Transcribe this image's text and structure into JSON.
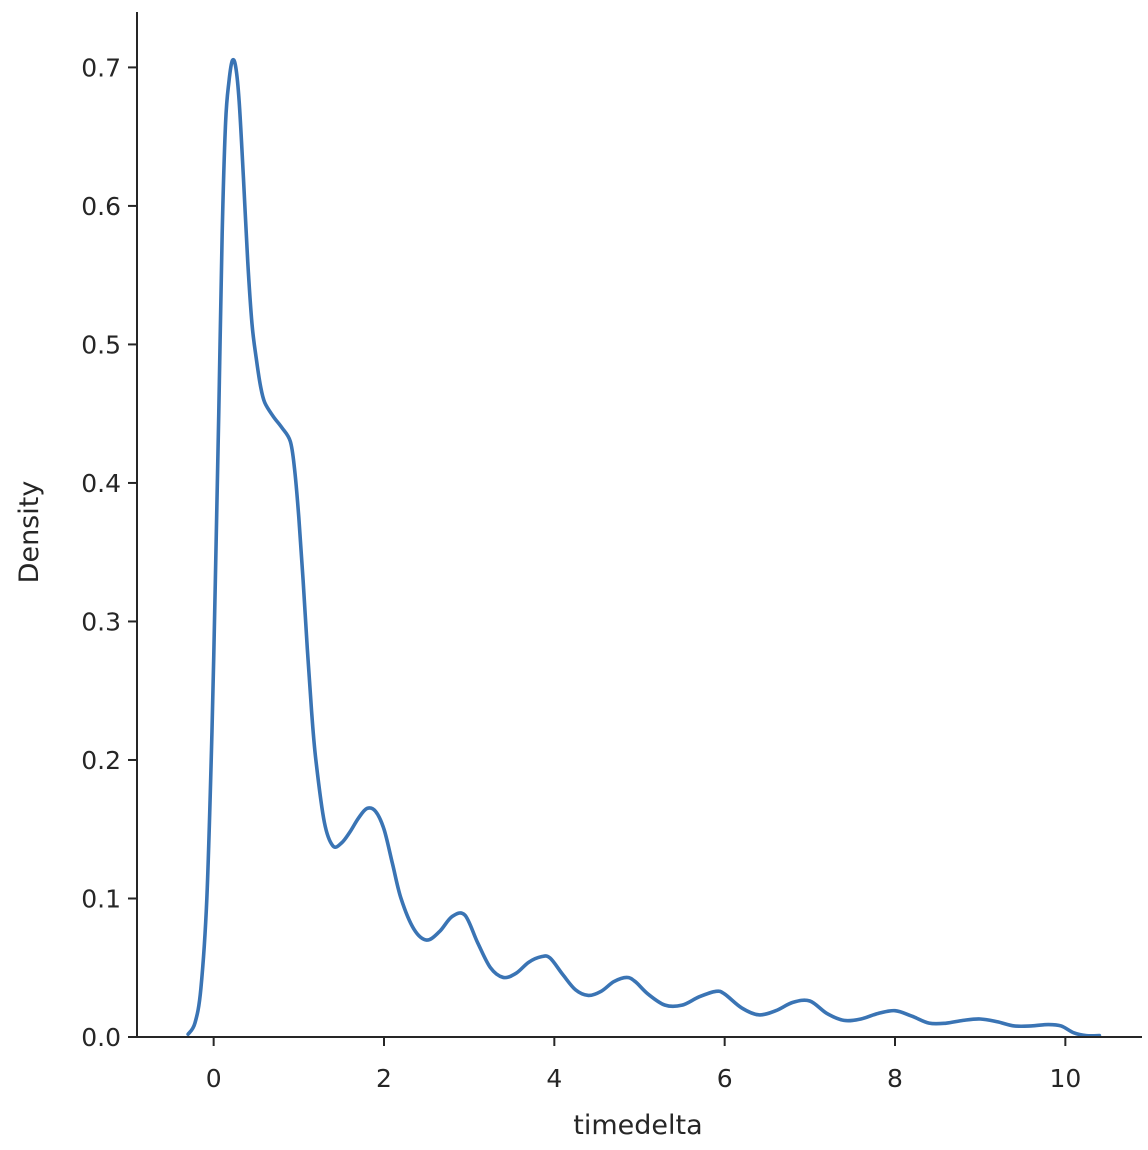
{
  "chart_data": {
    "type": "line",
    "title": "",
    "xlabel": "timedelta",
    "ylabel": "Density",
    "xlim": [
      -0.9,
      10.9
    ],
    "ylim": [
      0,
      0.74
    ],
    "xticks": [
      0,
      2,
      4,
      6,
      8,
      10
    ],
    "xtick_labels": [
      "0",
      "2",
      "4",
      "6",
      "8",
      "10"
    ],
    "yticks": [
      0.0,
      0.1,
      0.2,
      0.3,
      0.4,
      0.5,
      0.6,
      0.7
    ],
    "ytick_labels": [
      "0.0",
      "0.1",
      "0.2",
      "0.3",
      "0.4",
      "0.5",
      "0.6",
      "0.7"
    ],
    "grid": false,
    "color": "#3a74b4",
    "series": [
      {
        "x": [
          -0.3,
          -0.22,
          -0.15,
          -0.08,
          -0.02,
          0.02,
          0.06,
          0.1,
          0.14,
          0.18,
          0.22,
          0.26,
          0.3,
          0.35,
          0.4,
          0.45,
          0.5,
          0.55,
          0.6,
          0.7,
          0.8,
          0.9,
          0.95,
          1.0,
          1.05,
          1.1,
          1.15,
          1.2,
          1.3,
          1.4,
          1.5,
          1.6,
          1.7,
          1.8,
          1.9,
          2.0,
          2.1,
          2.2,
          2.35,
          2.5,
          2.65,
          2.8,
          2.95,
          3.1,
          3.25,
          3.4,
          3.55,
          3.7,
          3.85,
          3.95,
          4.1,
          4.25,
          4.4,
          4.55,
          4.7,
          4.85,
          4.95,
          5.1,
          5.3,
          5.5,
          5.7,
          5.9,
          6.0,
          6.2,
          6.4,
          6.6,
          6.8,
          7.0,
          7.2,
          7.4,
          7.6,
          7.8,
          8.0,
          8.2,
          8.4,
          8.6,
          8.8,
          9.0,
          9.2,
          9.4,
          9.6,
          9.8,
          9.95,
          10.1,
          10.25,
          10.4
        ],
        "y": [
          0.002,
          0.01,
          0.035,
          0.1,
          0.22,
          0.33,
          0.45,
          0.58,
          0.66,
          0.69,
          0.705,
          0.7,
          0.675,
          0.62,
          0.56,
          0.515,
          0.49,
          0.47,
          0.458,
          0.448,
          0.44,
          0.43,
          0.41,
          0.375,
          0.33,
          0.28,
          0.235,
          0.2,
          0.155,
          0.138,
          0.14,
          0.148,
          0.158,
          0.165,
          0.163,
          0.15,
          0.125,
          0.1,
          0.078,
          0.07,
          0.076,
          0.087,
          0.088,
          0.068,
          0.05,
          0.043,
          0.046,
          0.054,
          0.058,
          0.057,
          0.045,
          0.034,
          0.03,
          0.033,
          0.04,
          0.043,
          0.04,
          0.031,
          0.023,
          0.023,
          0.029,
          0.033,
          0.031,
          0.021,
          0.016,
          0.019,
          0.025,
          0.026,
          0.017,
          0.012,
          0.013,
          0.017,
          0.019,
          0.015,
          0.01,
          0.01,
          0.012,
          0.013,
          0.011,
          0.008,
          0.008,
          0.009,
          0.008,
          0.003,
          0.001,
          0.001
        ]
      }
    ]
  }
}
